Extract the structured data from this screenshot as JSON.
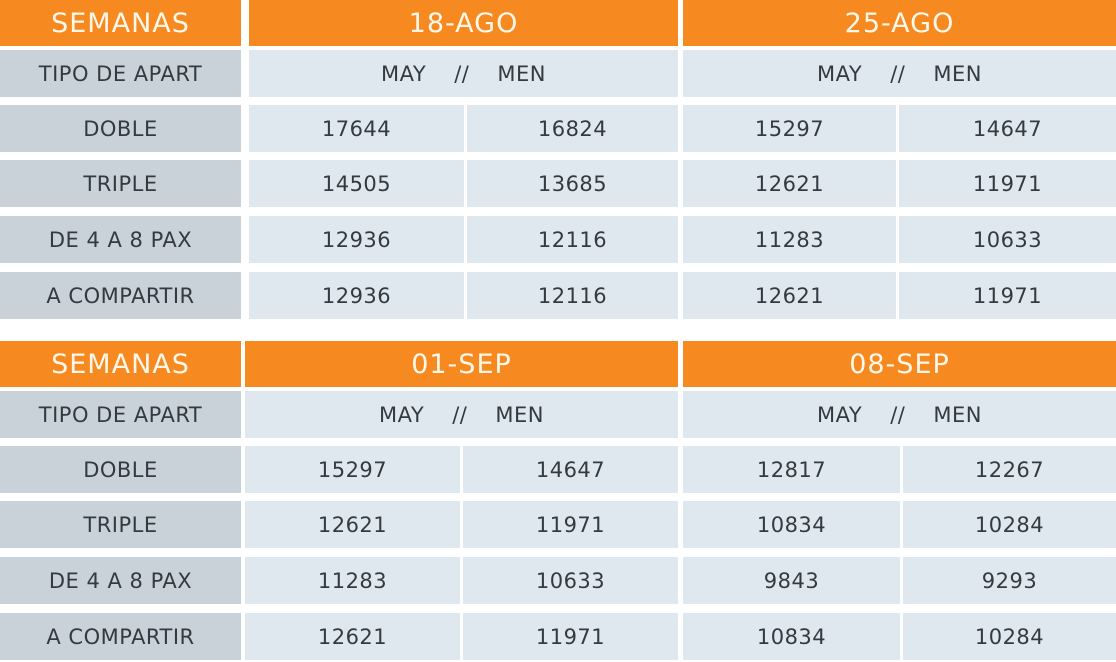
{
  "colors": {
    "header": "#f6891f",
    "label_cell": "#c9d1d9",
    "value_cell": "#e0e8ef"
  },
  "tables": [
    {
      "header": "SEMANAS",
      "weeks": [
        "18-AGO",
        "25-AGO"
      ],
      "subheader": {
        "label": "TIPO DE APART",
        "may": "MAY",
        "sep": "//",
        "men": "MEN"
      },
      "rows": [
        {
          "type": "DOBLE",
          "values": [
            "17644",
            "16824",
            "15297",
            "14647"
          ]
        },
        {
          "type": "TRIPLE",
          "values": [
            "14505",
            "13685",
            "12621",
            "11971"
          ]
        },
        {
          "type": "DE 4 A 8 PAX",
          "values": [
            "12936",
            "12116",
            "11283",
            "10633"
          ]
        },
        {
          "type": "A COMPARTIR",
          "values": [
            "12936",
            "12116",
            "12621",
            "11971"
          ]
        }
      ]
    },
    {
      "header": "SEMANAS",
      "weeks": [
        "01-SEP",
        "08-SEP"
      ],
      "subheader": {
        "label": "TIPO DE APART",
        "may": "MAY",
        "sep": "//",
        "men": "MEN"
      },
      "rows": [
        {
          "type": "DOBLE",
          "values": [
            "15297",
            "14647",
            "12817",
            "12267"
          ]
        },
        {
          "type": "TRIPLE",
          "values": [
            "12621",
            "11971",
            "10834",
            "10284"
          ]
        },
        {
          "type": "DE 4 A 8 PAX",
          "values": [
            "11283",
            "10633",
            "9843",
            "9293"
          ]
        },
        {
          "type": "A COMPARTIR",
          "values": [
            "12621",
            "11971",
            "10834",
            "10284"
          ]
        }
      ]
    }
  ]
}
